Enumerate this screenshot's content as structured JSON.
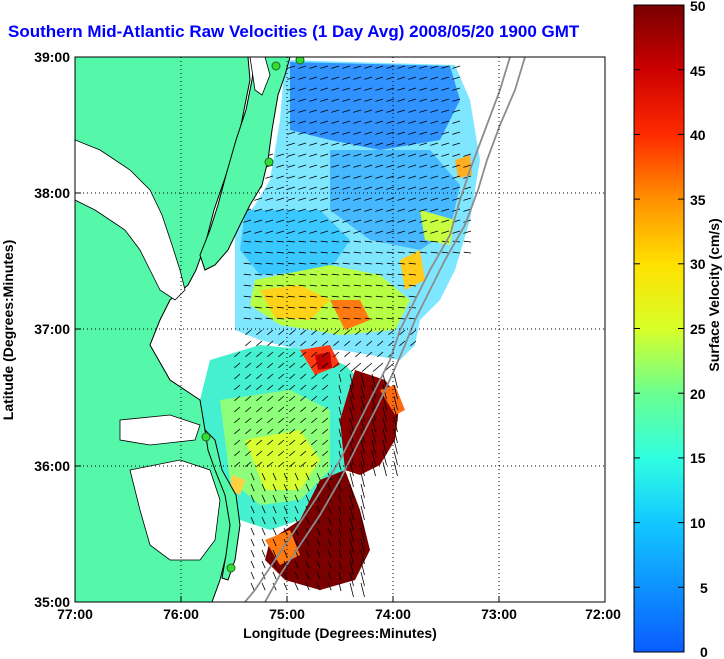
{
  "title": "Southern Mid-Atlantic Raw Velocities (1 Day Avg) 2008/05/20 1900 GMT",
  "xlabel": "Longitude (Degrees:Minutes)",
  "ylabel": "Latitude (Degrees:Minutes)",
  "colorbar_label": "Surface Velocity (cm/s)",
  "x_ticks": [
    "77:00",
    "76:00",
    "75:00",
    "74:00",
    "73:00",
    "72:00"
  ],
  "y_ticks": [
    "39:00",
    "38:00",
    "37:00",
    "36:00",
    "35:00"
  ],
  "colorbar_ticks": [
    "0",
    "5",
    "10",
    "15",
    "20",
    "25",
    "30",
    "35",
    "40",
    "45",
    "50"
  ],
  "colorbar_range": [
    0,
    50
  ],
  "colors": {
    "land": "#55f7a9",
    "title": "#0000ff",
    "grid": "#000000",
    "bathymetry": "#8c8c8c",
    "station_marker": "#33dd33"
  },
  "map": {
    "lon_range": [
      -77,
      -72
    ],
    "lat_range": [
      35,
      39
    ],
    "grid": "dotted",
    "stations": 5
  }
}
